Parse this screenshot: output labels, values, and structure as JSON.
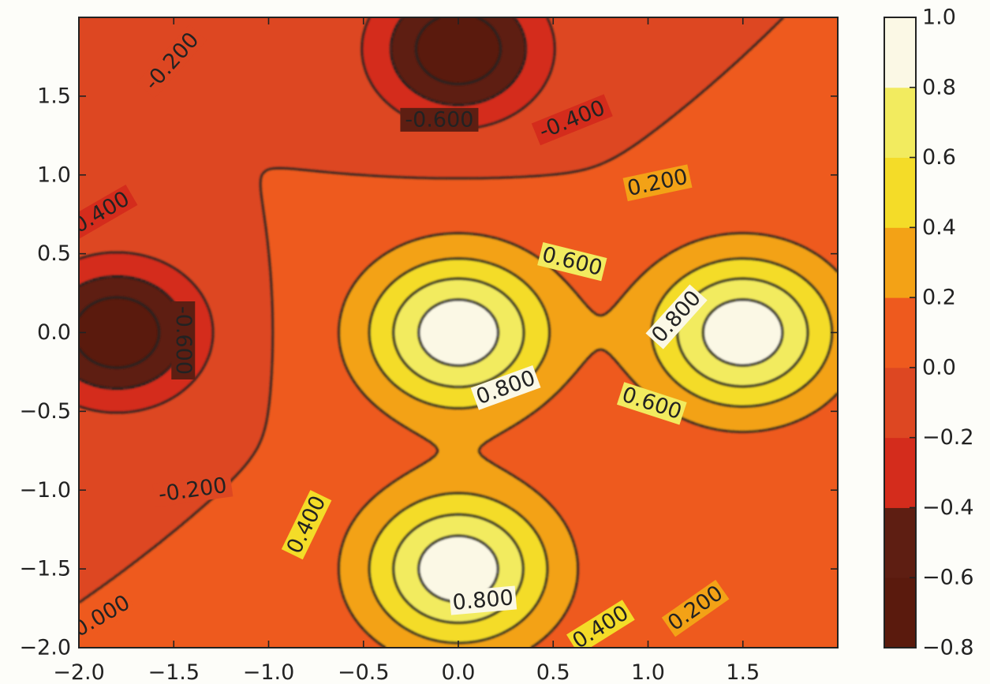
{
  "chart_data": {
    "type": "contourf",
    "title": "",
    "xlabel": "",
    "ylabel": "",
    "xlim": [
      -2.0,
      2.0
    ],
    "ylim": [
      -2.0,
      2.0
    ],
    "x_ticks": [
      -2.0,
      -1.5,
      -1.0,
      -0.5,
      0.0,
      0.5,
      1.0,
      1.5
    ],
    "x_tick_labels": [
      "−2.0",
      "−1.5",
      "−1.0",
      "−0.5",
      "0.0",
      "0.5",
      "1.0",
      "1.5"
    ],
    "y_ticks": [
      -2.0,
      -1.5,
      -1.0,
      -0.5,
      0.0,
      0.5,
      1.0,
      1.5
    ],
    "y_tick_labels": [
      "−2.0",
      "−1.5",
      "−1.0",
      "−0.5",
      "0.0",
      "0.5",
      "1.0",
      "1.5"
    ],
    "grid": false,
    "colormap": "hot",
    "fill_levels": [
      -0.8,
      -0.6,
      -0.4,
      -0.2,
      0.0,
      0.2,
      0.4,
      0.6,
      0.8,
      1.0
    ],
    "fill_colors": [
      "#5a1a0d",
      "#5e1e12",
      "#d42c1c",
      "#dd4722",
      "#ee5a1e",
      "#f3a216",
      "#f4dc28",
      "#f2eb5f",
      "#fbf8e5"
    ],
    "colorbar": {
      "position": "right",
      "ticks": [
        1.0,
        0.8,
        0.6,
        0.4,
        0.2,
        0.0,
        -0.2,
        -0.4,
        -0.6,
        -0.8
      ],
      "tick_labels": [
        "1.0",
        "0.8",
        "0.6",
        "0.4",
        "0.2",
        "0.0",
        "−0.2",
        "−0.4",
        "−0.6",
        "−0.8"
      ]
    },
    "contour_lines": {
      "levels": [
        -0.6,
        -0.4,
        -0.2,
        0.0,
        0.2,
        0.4,
        0.6,
        0.8
      ],
      "negative_linestyle": "dashed",
      "color": "#222222"
    },
    "features": [
      {
        "kind": "peak",
        "x": 0.0,
        "y": 0.0,
        "value": 1.0
      },
      {
        "kind": "peak",
        "x": 1.5,
        "y": 0.0,
        "value": 1.0
      },
      {
        "kind": "peak",
        "x": 0.0,
        "y": -1.5,
        "value": 1.0
      },
      {
        "kind": "trough",
        "x": 0.0,
        "y": 1.8,
        "value": -0.75
      },
      {
        "kind": "trough",
        "x": -1.8,
        "y": 0.0,
        "value": -0.75
      }
    ],
    "contour_labels": [
      {
        "text": "0.200",
        "x": 1.05,
        "y": 0.95,
        "angle": -12
      },
      {
        "text": "0.600",
        "x": 0.6,
        "y": 0.45,
        "angle": 14
      },
      {
        "text": "0.800",
        "x": 1.15,
        "y": 0.1,
        "angle": -48
      },
      {
        "text": "0.800",
        "x": 0.25,
        "y": -0.35,
        "angle": -20
      },
      {
        "text": "0.600",
        "x": 1.02,
        "y": -0.45,
        "angle": 18
      },
      {
        "text": "0.400",
        "x": -0.8,
        "y": -1.22,
        "angle": -64
      },
      {
        "text": "0.800",
        "x": 0.13,
        "y": -1.7,
        "angle": -5
      },
      {
        "text": "0.200",
        "x": 1.25,
        "y": -1.75,
        "angle": -35
      },
      {
        "text": "0.400",
        "x": 0.75,
        "y": -1.87,
        "angle": -32
      },
      {
        "text": "0.000",
        "x": -1.88,
        "y": -1.8,
        "angle": -30
      },
      {
        "text": "-0.200",
        "x": -1.51,
        "y": 1.72,
        "angle": -48
      },
      {
        "text": "-0.200",
        "x": -1.4,
        "y": -1.0,
        "angle": -8
      },
      {
        "text": "-0.400",
        "x": -1.9,
        "y": 0.75,
        "angle": -30
      },
      {
        "text": "-0.400",
        "x": 0.6,
        "y": 1.35,
        "angle": -22
      },
      {
        "text": "-0.600",
        "x": -0.1,
        "y": 1.35,
        "angle": 0
      },
      {
        "text": "-0.600",
        "x": -1.45,
        "y": -0.05,
        "angle": 90
      }
    ]
  }
}
